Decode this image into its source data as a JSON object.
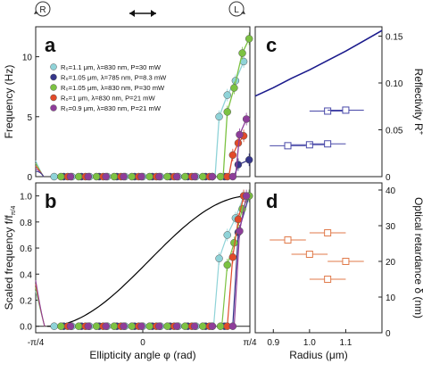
{
  "figure": {
    "top_markers": {
      "left_symbol": "R",
      "right_symbol": "L",
      "arrow": "double-arrow"
    },
    "x_axis_label": "Ellipticity angle φ (rad)",
    "right_x_axis_label": "Radius (μm)"
  },
  "chart_data": [
    {
      "panel": "a",
      "type": "scatter",
      "ylabel": "Frequency (Hz)",
      "xlim": [
        -0.7854,
        0.7854
      ],
      "ylim": [
        0,
        12.5
      ],
      "x_ticks": [
        -0.7854,
        0,
        0.7854
      ],
      "y_ticks": [
        0,
        5,
        10
      ],
      "y_tick_labels": [
        "0",
        "5",
        "10"
      ],
      "legend": "top-left",
      "series": [
        {
          "name": "R₀=1.1 μm, λ=830 nm, P=30 mW",
          "color": "#8fd3d8",
          "x": [
            -0.65,
            -0.52,
            -0.39,
            -0.26,
            -0.13,
            0,
            0.13,
            0.26,
            0.39,
            0.51,
            0.56,
            0.62,
            0.68,
            0.74
          ],
          "y": [
            0,
            0,
            0,
            0,
            0,
            0,
            0,
            0,
            0,
            0,
            5.0,
            6.8,
            8.0,
            9.6
          ]
        },
        {
          "name": "R₀=1.05 μm, λ=785 nm, P=8.3 mW",
          "color": "#36368a",
          "x": [
            -0.58,
            -0.45,
            -0.32,
            -0.19,
            -0.06,
            0.07,
            0.2,
            0.33,
            0.46,
            0.6,
            0.7,
            0.78
          ],
          "y": [
            0,
            0,
            0,
            0,
            0,
            0,
            0,
            0,
            0,
            0,
            1.0,
            1.4
          ]
        },
        {
          "name": "R₀=1.05 μm, λ=830 nm, P=30 mW",
          "color": "#7cc242",
          "x": [
            -0.6,
            -0.47,
            -0.34,
            -0.21,
            -0.08,
            0.05,
            0.18,
            0.31,
            0.44,
            0.57,
            0.62,
            0.67,
            0.73,
            0.78
          ],
          "y": [
            0,
            0,
            0,
            0,
            0,
            0,
            0,
            0,
            0,
            0,
            5.4,
            7.4,
            10.3,
            11.5
          ]
        },
        {
          "name": "R₀=1 μm, λ=830 nm, P=21 mW",
          "color": "#e24a2a",
          "x": [
            -0.55,
            -0.42,
            -0.29,
            -0.16,
            -0.03,
            0.1,
            0.23,
            0.36,
            0.49,
            0.62,
            0.66,
            0.7,
            0.74
          ],
          "y": [
            0,
            0,
            0,
            0,
            0,
            0,
            0,
            0,
            0,
            0,
            1.8,
            2.8,
            3.4
          ]
        },
        {
          "name": "R₀=0.9 μm, λ=830 nm, P=21 mW",
          "color": "#8e3d9a",
          "x": [
            -0.53,
            -0.4,
            -0.27,
            -0.14,
            -0.01,
            0.12,
            0.25,
            0.38,
            0.51,
            0.66,
            0.71,
            0.76
          ],
          "y": [
            0,
            0,
            0,
            0,
            0,
            0,
            0,
            0,
            0,
            0,
            3.5,
            4.8
          ]
        }
      ]
    },
    {
      "panel": "b",
      "type": "scatter",
      "ylabel": "Scaled frequency f/f",
      "ylabel_subscript": "π/4",
      "xlabel": "Ellipticity angle φ (rad)",
      "xlim": [
        -0.7854,
        0.7854
      ],
      "ylim": [
        -0.05,
        1.1
      ],
      "x_ticks": [
        -0.7854,
        0,
        0.7854
      ],
      "x_tick_labels": [
        "-π/4",
        "0",
        "π/4"
      ],
      "y_ticks": [
        0,
        0.2,
        0.4,
        0.6,
        0.8,
        1.0
      ],
      "y_tick_labels": [
        "0.0",
        "0.2",
        "0.4",
        "0.6",
        "0.8",
        "1.0"
      ],
      "series": [
        {
          "color": "#8fd3d8",
          "x": [
            0.56,
            0.62,
            0.68,
            0.74
          ],
          "y": [
            0.52,
            0.7,
            0.83,
            1.0
          ]
        },
        {
          "color": "#36368a",
          "x": [
            0.7,
            0.78
          ],
          "y": [
            0.72,
            1.0
          ]
        },
        {
          "color": "#7cc242",
          "x": [
            0.62,
            0.67,
            0.73,
            0.78
          ],
          "y": [
            0.47,
            0.64,
            0.9,
            1.0
          ]
        },
        {
          "color": "#e24a2a",
          "x": [
            0.66,
            0.7,
            0.74
          ],
          "y": [
            0.53,
            0.82,
            1.0
          ]
        },
        {
          "color": "#8e3d9a",
          "x": [
            0.71,
            0.76
          ],
          "y": [
            0.73,
            1.0
          ]
        }
      ]
    },
    {
      "panel": "c",
      "type": "scatter",
      "ylabel": "Reflectivity R",
      "ylabel_superscript": "+",
      "xlim": [
        0.85,
        1.2
      ],
      "ylim": [
        0,
        0.16
      ],
      "y_ticks": [
        0,
        0.05,
        0.1,
        0.15
      ],
      "y_tick_labels": [
        "0",
        "0.05",
        "0.10",
        "0.15"
      ],
      "axis_side": "right",
      "series": [
        {
          "type": "line",
          "color": "#1a1a8c",
          "x": [
            0.85,
            0.9,
            0.95,
            1.0,
            1.05,
            1.1,
            1.15,
            1.2
          ],
          "y": [
            0.086,
            0.095,
            0.105,
            0.114,
            0.124,
            0.134,
            0.145,
            0.156
          ]
        },
        {
          "type": "scatter",
          "marker": "square",
          "color": "#4848a8",
          "x": [
            0.94,
            1.0,
            1.05,
            1.05,
            1.1
          ],
          "y": [
            0.033,
            0.034,
            0.035,
            0.07,
            0.071
          ],
          "x_error": [
            0.05,
            0.05,
            0.05,
            0.05,
            0.05
          ]
        }
      ]
    },
    {
      "panel": "d",
      "type": "scatter",
      "ylabel": "Optical retardance δ (nm)",
      "xlabel": "Radius (μm)",
      "xlim": [
        0.85,
        1.2
      ],
      "ylim": [
        0,
        42
      ],
      "x_ticks": [
        0.9,
        1.0,
        1.1
      ],
      "x_tick_labels": [
        "0.9",
        "1.0",
        "1.1"
      ],
      "y_ticks": [
        0,
        10,
        20,
        30,
        40
      ],
      "y_tick_labels": [
        "0",
        "10",
        "20",
        "30",
        "40"
      ],
      "axis_side": "right",
      "series": [
        {
          "type": "scatter",
          "marker": "square",
          "color": "#e07a4a",
          "x": [
            0.94,
            1.0,
            1.05,
            1.05,
            1.1
          ],
          "y": [
            26,
            22,
            28,
            15,
            20
          ],
          "x_error": [
            0.05,
            0.05,
            0.05,
            0.05,
            0.05
          ]
        }
      ]
    }
  ]
}
